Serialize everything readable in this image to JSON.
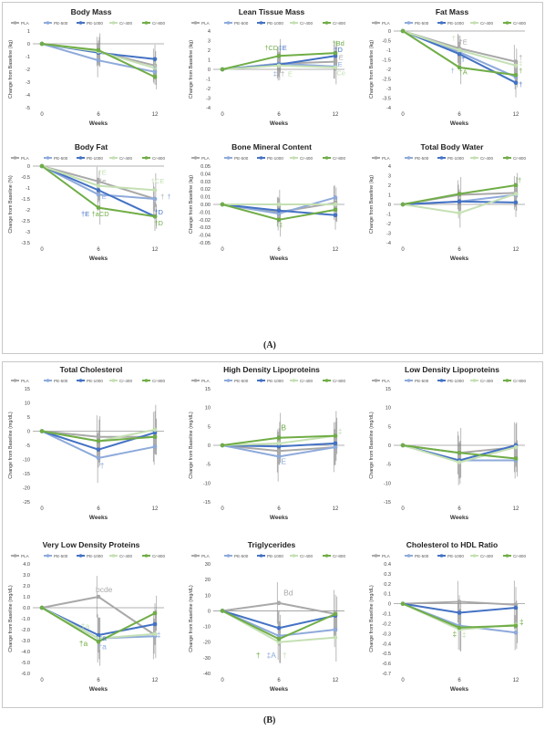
{
  "panel_labels": {
    "a": "(A)",
    "b": "(B)"
  },
  "legend_entries": [
    "PLA",
    "PE-500",
    "PE-1000",
    "Cr-400",
    "Cr-800"
  ],
  "colors": {
    "PLA": "#a9a9a9",
    "PE-500": "#8eaadb",
    "PE-1000": "#4472c4",
    "Cr-400": "#c5e0b4",
    "Cr-800": "#70ad47"
  },
  "chart_data": [
    {
      "type": "line",
      "title": "Body Mass",
      "xlabel": "Weeks",
      "ylabel": "Change from Baseline (kg)",
      "x": [
        0,
        6,
        12
      ],
      "ylim": [
        -5,
        1
      ],
      "yticks": [
        1,
        0,
        -1,
        -2,
        -3,
        -4,
        -5
      ],
      "series": [
        {
          "name": "PLA",
          "values": [
            0,
            -0.6,
            -1.7
          ]
        },
        {
          "name": "PE-500",
          "values": [
            0,
            -1.3,
            -2.2
          ]
        },
        {
          "name": "PE-1000",
          "values": [
            0,
            -0.7,
            -1.2
          ]
        },
        {
          "name": "Cr-400",
          "values": [
            0,
            -0.6,
            -1.9
          ]
        },
        {
          "name": "Cr-800",
          "values": [
            0,
            -0.5,
            -2.6
          ]
        }
      ],
      "annotations": [
        {
          "text": "‡",
          "x": 12,
          "y": -1.8,
          "series": "Cr-400"
        },
        {
          "text": "†",
          "x": 12,
          "y": -2.1,
          "series": "PE-500"
        },
        {
          "text": "†",
          "x": 12,
          "y": -2.7,
          "series": "Cr-800"
        }
      ]
    },
    {
      "type": "line",
      "title": "Lean Tissue Mass",
      "xlabel": "Weeks",
      "ylabel": "Change from Baseline (kg)",
      "x": [
        0,
        6,
        12
      ],
      "ylim": [
        -4,
        4
      ],
      "yticks": [
        4,
        3,
        2,
        1,
        0,
        -1,
        -2,
        -3,
        -4
      ],
      "series": [
        {
          "name": "PLA",
          "values": [
            0,
            0.6,
            0.8
          ]
        },
        {
          "name": "PE-500",
          "values": [
            0,
            0.6,
            0.3
          ]
        },
        {
          "name": "PE-1000",
          "values": [
            0,
            0.5,
            1.4
          ]
        },
        {
          "name": "Cr-400",
          "values": [
            0,
            0.4,
            0.2
          ]
        },
        {
          "name": "Cr-800",
          "values": [
            0,
            1.4,
            1.7
          ]
        }
      ],
      "annotations": [
        {
          "text": "†CD",
          "x": 5.2,
          "y": 2.0,
          "series": "Cr-800"
        },
        {
          "text": "‡E",
          "x": 6.4,
          "y": 2.0,
          "series": "PE-1000"
        },
        {
          "text": "†Bd",
          "x": 12.3,
          "y": 2.5,
          "series": "Cr-800"
        },
        {
          "text": "†D",
          "x": 12.3,
          "y": 1.8,
          "series": "PE-1000"
        },
        {
          "text": "E",
          "x": 12.6,
          "y": 1.0,
          "series": "PLA"
        },
        {
          "text": "E",
          "x": 12.5,
          "y": 0.3,
          "series": "PE-500"
        },
        {
          "text": "‡",
          "x": 5.6,
          "y": -0.7,
          "series": "PE-500"
        },
        {
          "text": "†",
          "x": 6.4,
          "y": -0.7,
          "series": "PLA"
        },
        {
          "text": "E",
          "x": 7.2,
          "y": -0.7,
          "series": "Cr-400"
        },
        {
          "text": "Ce",
          "x": 12.6,
          "y": -0.6,
          "series": "Cr-400"
        }
      ]
    },
    {
      "type": "line",
      "title": "Fat Mass",
      "xlabel": "Weeks",
      "ylabel": "Change from Baseline (kg)",
      "x": [
        0,
        6,
        12
      ],
      "ylim": [
        -4,
        0
      ],
      "yticks": [
        0,
        -0.5,
        -1,
        -1.5,
        -2,
        -2.5,
        -3,
        -3.5,
        -4
      ],
      "series": [
        {
          "name": "PLA",
          "values": [
            0,
            -0.9,
            -1.6
          ]
        },
        {
          "name": "PE-500",
          "values": [
            0,
            -1.1,
            -2.4
          ]
        },
        {
          "name": "PE-1000",
          "values": [
            0,
            -1.2,
            -2.7
          ]
        },
        {
          "name": "Cr-400",
          "values": [
            0,
            -1.0,
            -1.8
          ]
        },
        {
          "name": "Cr-800",
          "values": [
            0,
            -1.9,
            -2.3
          ]
        }
      ],
      "annotations": [
        {
          "text": "†E",
          "x": 6.4,
          "y": -0.7,
          "series": "PLA"
        },
        {
          "text": "†",
          "x": 5.4,
          "y": -0.5,
          "series": "Cr-400"
        },
        {
          "text": "†",
          "x": 6.4,
          "y": -1.6,
          "series": "PE-1000"
        },
        {
          "text": "†A",
          "x": 6.4,
          "y": -2.25,
          "series": "Cr-800"
        },
        {
          "text": "†",
          "x": 5.3,
          "y": -2.2,
          "series": "PE-500"
        },
        {
          "text": "†",
          "x": 12.5,
          "y": -1.5,
          "series": "PLA"
        },
        {
          "text": "‡",
          "x": 12.5,
          "y": -1.8,
          "series": "Cr-400"
        },
        {
          "text": "†",
          "x": 12.5,
          "y": -2.2,
          "series": "Cr-800"
        },
        {
          "text": "†",
          "x": 12.5,
          "y": -2.9,
          "series": "PE-1000"
        }
      ]
    },
    {
      "type": "line",
      "title": "Body Fat",
      "xlabel": "Weeks",
      "ylabel": "Change from Baseline (%)",
      "x": [
        0,
        6,
        12
      ],
      "ylim": [
        -3.5,
        0
      ],
      "yticks": [
        0,
        -0.5,
        -1,
        -1.5,
        -2,
        -2.5,
        -3,
        -3.5
      ],
      "series": [
        {
          "name": "PLA",
          "values": [
            0,
            -0.7,
            -1.5
          ]
        },
        {
          "name": "PE-500",
          "values": [
            0,
            -1.3,
            -1.5
          ]
        },
        {
          "name": "PE-1000",
          "values": [
            0,
            -1.1,
            -2.3
          ]
        },
        {
          "name": "Cr-400",
          "values": [
            0,
            -0.9,
            -1.1
          ]
        },
        {
          "name": "Cr-800",
          "values": [
            0,
            -1.9,
            -2.3
          ]
        }
      ],
      "annotations": [
        {
          "text": "†E",
          "x": 6.4,
          "y": -0.4,
          "series": "Cr-400"
        },
        {
          "text": "†e",
          "x": 6.4,
          "y": -0.8,
          "series": "PLA"
        },
        {
          "text": "†E",
          "x": 6.4,
          "y": -1.5,
          "series": "PE-500"
        },
        {
          "text": "†E",
          "x": 4.6,
          "y": -2.3,
          "series": "PE-1000"
        },
        {
          "text": "†aCD",
          "x": 6.2,
          "y": -2.3,
          "series": "Cr-800"
        },
        {
          "text": "†CE",
          "x": 12.3,
          "y": -0.8,
          "series": "Cr-400"
        },
        {
          "text": "†",
          "x": 12.8,
          "y": -1.5,
          "series": "PLA"
        },
        {
          "text": "†",
          "x": 13.5,
          "y": -1.5,
          "series": "PE-500"
        },
        {
          "text": "†D",
          "x": 12.4,
          "y": -2.2,
          "series": "PE-1000"
        },
        {
          "text": "†D",
          "x": 12.4,
          "y": -2.7,
          "series": "Cr-800"
        }
      ]
    },
    {
      "type": "line",
      "title": "Bone Mineral Content",
      "xlabel": "Weeks",
      "ylabel": "Change from Baseline (kg)",
      "x": [
        0,
        6,
        12
      ],
      "ylim": [
        -0.05,
        0.05
      ],
      "yticks": [
        0.05,
        0.04,
        0.03,
        0.02,
        0.01,
        0.0,
        -0.01,
        -0.02,
        -0.03,
        -0.04,
        -0.05
      ],
      "ytick_labels": [
        "0.05",
        "0.04",
        "0.03",
        "0.02",
        "0.01",
        "0.00",
        "-0.01",
        "-0.02",
        "-0.03",
        "-0.04",
        "-0.05"
      ],
      "series": [
        {
          "name": "PLA",
          "values": [
            0,
            -0.01,
            0.002
          ]
        },
        {
          "name": "PE-500",
          "values": [
            0,
            -0.012,
            0.009
          ]
        },
        {
          "name": "PE-1000",
          "values": [
            0,
            -0.008,
            -0.014
          ]
        },
        {
          "name": "Cr-400",
          "values": [
            0,
            0.0,
            0.0
          ]
        },
        {
          "name": "Cr-800",
          "values": [
            0,
            -0.02,
            -0.007
          ]
        }
      ],
      "annotations": [
        {
          "text": "‡",
          "x": 6.2,
          "y": -0.03,
          "series": "Cr-800"
        }
      ]
    },
    {
      "type": "line",
      "title": "Total Body Water",
      "xlabel": "Weeks",
      "ylabel": "Change from Baseline (kg)",
      "x": [
        0,
        6,
        12
      ],
      "ylim": [
        -4,
        4
      ],
      "yticks": [
        4,
        3,
        2,
        1,
        0,
        -1,
        -2,
        -3,
        -4
      ],
      "series": [
        {
          "name": "PLA",
          "values": [
            0,
            1.0,
            1.2
          ]
        },
        {
          "name": "PE-500",
          "values": [
            0,
            0.3,
            1.0
          ]
        },
        {
          "name": "PE-1000",
          "values": [
            0,
            0.3,
            0.2
          ]
        },
        {
          "name": "Cr-400",
          "values": [
            0,
            -0.9,
            1.1
          ]
        },
        {
          "name": "Cr-800",
          "values": [
            0,
            1.1,
            2.0
          ]
        }
      ],
      "annotations": [
        {
          "text": "†",
          "x": 12.4,
          "y": 2.3,
          "series": "Cr-800"
        }
      ]
    },
    {
      "type": "line",
      "title": "Total Cholesterol",
      "xlabel": "Weeks",
      "ylabel": "Change from Baseline (mg/dL)",
      "x": [
        0,
        6,
        12
      ],
      "ylim": [
        -25,
        15
      ],
      "yticks": [
        15,
        10,
        5,
        0,
        -5,
        -10,
        -15,
        -20,
        -25
      ],
      "series": [
        {
          "name": "PLA",
          "values": [
            0,
            -2.0,
            -2.0
          ]
        },
        {
          "name": "PE-500",
          "values": [
            0,
            -9.5,
            -5.5
          ]
        },
        {
          "name": "PE-1000",
          "values": [
            0,
            -6.5,
            -0.5
          ]
        },
        {
          "name": "Cr-400",
          "values": [
            0,
            -3.5,
            0.5
          ]
        },
        {
          "name": "Cr-800",
          "values": [
            0,
            -3.5,
            -2.0
          ]
        }
      ],
      "annotations": [
        {
          "text": "†",
          "x": 6.4,
          "y": -13.0,
          "series": "PE-500"
        }
      ]
    },
    {
      "type": "line",
      "title": "High Density Lipoproteins",
      "xlabel": "Weeks",
      "ylabel": "Change from Baseline (mg/dL)",
      "x": [
        0,
        6,
        12
      ],
      "ylim": [
        -15,
        15
      ],
      "yticks": [
        15,
        10,
        5,
        0,
        -5,
        -10,
        -15
      ],
      "series": [
        {
          "name": "PLA",
          "values": [
            0,
            -1.5,
            -0.5
          ]
        },
        {
          "name": "PE-500",
          "values": [
            0,
            -3.0,
            -0.5
          ]
        },
        {
          "name": "PE-1000",
          "values": [
            0,
            -0.3,
            0.5
          ]
        },
        {
          "name": "Cr-400",
          "values": [
            0,
            0.5,
            2.5
          ]
        },
        {
          "name": "Cr-800",
          "values": [
            0,
            2.0,
            2.5
          ]
        }
      ],
      "annotations": [
        {
          "text": "B",
          "x": 6.5,
          "y": 4.0,
          "series": "Cr-800"
        },
        {
          "text": "‡",
          "x": 12.5,
          "y": 3.0,
          "series": "Cr-400"
        },
        {
          "text": "E",
          "x": 6.5,
          "y": -5.0,
          "series": "PE-500"
        }
      ]
    },
    {
      "type": "line",
      "title": "Low Density Lipoproteins",
      "xlabel": "Weeks",
      "ylabel": "Change from Baseline (mg/dL)",
      "x": [
        0,
        6,
        12
      ],
      "ylim": [
        -15,
        15
      ],
      "yticks": [
        15,
        10,
        5,
        0,
        -5,
        -10,
        -15
      ],
      "series": [
        {
          "name": "PLA",
          "values": [
            0,
            -2.0,
            -0.5
          ]
        },
        {
          "name": "PE-500",
          "values": [
            0,
            -4.0,
            -4.0
          ]
        },
        {
          "name": "PE-1000",
          "values": [
            0,
            -4.0,
            0.0
          ]
        },
        {
          "name": "Cr-400",
          "values": [
            0,
            -4.5,
            -0.5
          ]
        },
        {
          "name": "Cr-800",
          "values": [
            0,
            -2.0,
            -3.5
          ]
        }
      ],
      "annotations": []
    },
    {
      "type": "line",
      "title": "Very Low Density Proteins",
      "xlabel": "Weeks",
      "ylabel": "Change from Baseline (mg/dL)",
      "x": [
        0,
        6,
        12
      ],
      "ylim": [
        -6,
        4
      ],
      "yticks": [
        4,
        3,
        2,
        1,
        0,
        -1,
        -2,
        -3,
        -4,
        -5,
        -6
      ],
      "ytick_labels": [
        "4.0",
        "3.0",
        "2.0",
        "1.0",
        "0.0",
        "-1.0",
        "-2.0",
        "-3.0",
        "-4.0",
        "-5.0",
        "-6.0"
      ],
      "series": [
        {
          "name": "PLA",
          "values": [
            0,
            1.0,
            -2.5
          ]
        },
        {
          "name": "PE-500",
          "values": [
            0,
            -2.8,
            -2.6
          ]
        },
        {
          "name": "PE-1000",
          "values": [
            0,
            -2.5,
            -1.5
          ]
        },
        {
          "name": "Cr-400",
          "values": [
            0,
            -2.8,
            -2.4
          ]
        },
        {
          "name": "Cr-800",
          "values": [
            0,
            -3.1,
            -0.5
          ]
        }
      ],
      "annotations": [
        {
          "text": "bcde",
          "x": 6.6,
          "y": 1.4,
          "series": "PLA"
        },
        {
          "text": "†a",
          "x": 4.6,
          "y": -1.9,
          "series": "Cr-400"
        },
        {
          "text": "†a",
          "x": 6.4,
          "y": -3.0,
          "series": "PE-1000"
        },
        {
          "text": "†a",
          "x": 4.4,
          "y": -3.5,
          "series": "Cr-800"
        },
        {
          "text": "†a",
          "x": 6.4,
          "y": -3.8,
          "series": "PE-500"
        },
        {
          "text": "‡",
          "x": 12.4,
          "y": -2.7,
          "series": "PE-500"
        }
      ]
    },
    {
      "type": "line",
      "title": "Triglycerides",
      "xlabel": "Weeks",
      "ylabel": "Change from Baseline (mg/dL)",
      "x": [
        0,
        6,
        12
      ],
      "ylim": [
        -40,
        30
      ],
      "yticks": [
        30,
        20,
        10,
        0,
        -10,
        -20,
        -30,
        -40
      ],
      "series": [
        {
          "name": "PLA",
          "values": [
            0,
            5.0,
            -2.0
          ]
        },
        {
          "name": "PE-500",
          "values": [
            0,
            -16.0,
            -12.0
          ]
        },
        {
          "name": "PE-1000",
          "values": [
            0,
            -11.0,
            -3.0
          ]
        },
        {
          "name": "Cr-400",
          "values": [
            0,
            -20.0,
            -17.0
          ]
        },
        {
          "name": "Cr-800",
          "values": [
            0,
            -18.0,
            -2.0
          ]
        }
      ],
      "annotations": [
        {
          "text": "Bd",
          "x": 7.0,
          "y": 10.0,
          "series": "PLA"
        },
        {
          "text": "†",
          "x": 3.8,
          "y": -30.0,
          "series": "Cr-800"
        },
        {
          "text": "‡A",
          "x": 5.2,
          "y": -30.0,
          "series": "PE-500"
        },
        {
          "text": "†",
          "x": 6.6,
          "y": -30.0,
          "series": "Cr-400"
        }
      ]
    },
    {
      "type": "line",
      "title": "Cholesterol to HDL Ratio",
      "xlabel": "Weeks",
      "ylabel": "Change from Baseline (mg/dL)",
      "x": [
        0,
        6,
        12
      ],
      "ylim": [
        -0.7,
        0.4
      ],
      "yticks": [
        0.4,
        0.3,
        0.2,
        0.1,
        0,
        -0.1,
        -0.2,
        -0.3,
        -0.4,
        -0.5,
        -0.6,
        -0.7
      ],
      "series": [
        {
          "name": "PLA",
          "values": [
            0,
            0.02,
            -0.01
          ]
        },
        {
          "name": "PE-500",
          "values": [
            0,
            -0.22,
            -0.29
          ]
        },
        {
          "name": "PE-1000",
          "values": [
            0,
            -0.09,
            -0.04
          ]
        },
        {
          "name": "Cr-400",
          "values": [
            0,
            -0.26,
            -0.21
          ]
        },
        {
          "name": "Cr-800",
          "values": [
            0,
            -0.24,
            -0.22
          ]
        }
      ],
      "annotations": [
        {
          "text": "‡",
          "x": 5.5,
          "y": -0.33,
          "series": "Cr-800"
        },
        {
          "text": "‡",
          "x": 6.5,
          "y": -0.34,
          "series": "Cr-400"
        },
        {
          "text": "‡",
          "x": 12.6,
          "y": -0.21,
          "series": "Cr-800"
        }
      ]
    }
  ]
}
